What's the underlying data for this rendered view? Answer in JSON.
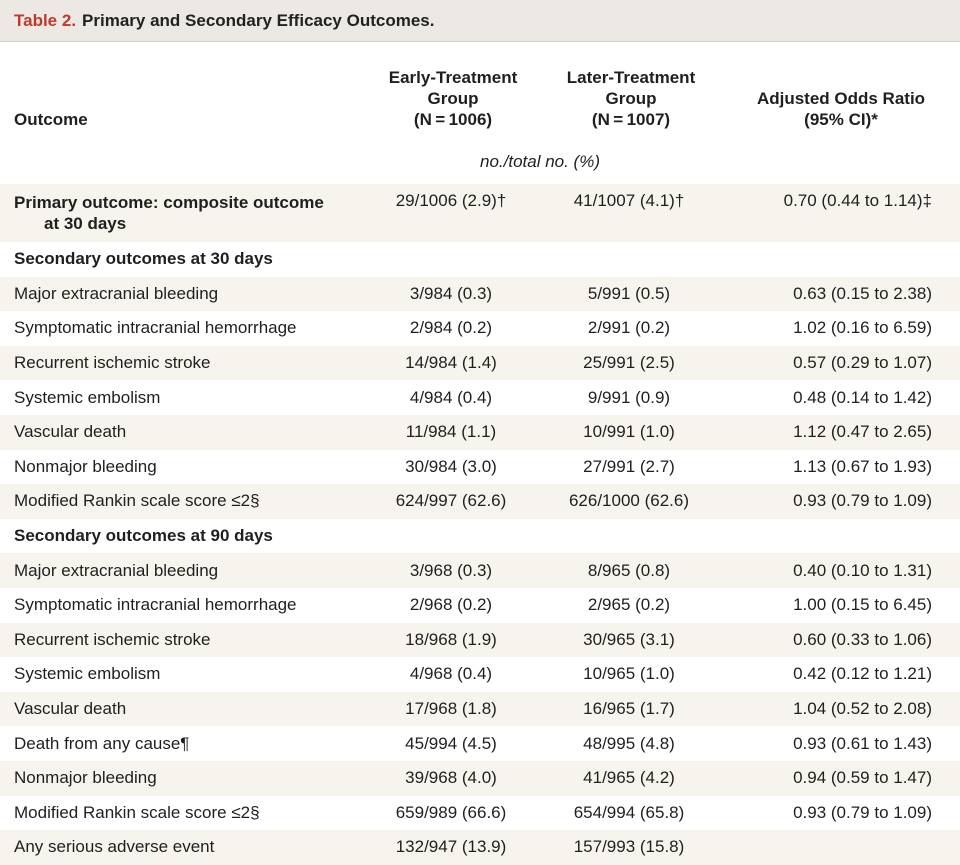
{
  "title": {
    "label": "Table 2.",
    "text": "Primary and Secondary Efficacy Outcomes."
  },
  "header": {
    "outcome": "Outcome",
    "early_l1": "Early-Treatment",
    "early_l2": "Group",
    "early_l3": "(N = 1006)",
    "later_l1": "Later-Treatment",
    "later_l2": "Group",
    "later_l3": "(N = 1007)",
    "or_l1": "Adjusted Odds Ratio",
    "or_l2": "(95% CI)*"
  },
  "units": "no./total no. (%)",
  "primary": {
    "label_l1": "Primary outcome: composite outcome",
    "label_l2": "at 30 days",
    "early": "29/1006 (2.9)†",
    "later": "41/1007 (4.1)†",
    "or": "0.70 (0.44 to 1.14)‡"
  },
  "section30": "Secondary outcomes at 30 days",
  "rows30": [
    {
      "label": "Major extracranial bleeding",
      "early": "3/984 (0.3)",
      "later": "5/991 (0.5)",
      "or": "0.63 (0.15 to 2.38)"
    },
    {
      "label": "Symptomatic intracranial hemorrhage",
      "early": "2/984 (0.2)",
      "later": "2/991 (0.2)",
      "or": "1.02 (0.16 to 6.59)"
    },
    {
      "label": "Recurrent ischemic stroke",
      "early": "14/984 (1.4)",
      "later": "25/991 (2.5)",
      "or": "0.57 (0.29 to 1.07)"
    },
    {
      "label": "Systemic embolism",
      "early": "4/984 (0.4)",
      "later": "9/991 (0.9)",
      "or": "0.48 (0.14 to 1.42)"
    },
    {
      "label": "Vascular death",
      "early": "11/984 (1.1)",
      "later": "10/991 (1.0)",
      "or": "1.12 (0.47 to 2.65)"
    },
    {
      "label": "Nonmajor bleeding",
      "early": "30/984 (3.0)",
      "later": "27/991 (2.7)",
      "or": "1.13 (0.67 to 1.93)"
    },
    {
      "label": "Modified Rankin scale score ≤2§",
      "early": "624/997 (62.6)",
      "later": "626/1000 (62.6)",
      "or": "0.93 (0.79 to 1.09)"
    }
  ],
  "section90": "Secondary outcomes at 90 days",
  "rows90": [
    {
      "label": "Major extracranial bleeding",
      "early": "3/968 (0.3)",
      "later": "8/965 (0.8)",
      "or": "0.40 (0.10 to 1.31)"
    },
    {
      "label": "Symptomatic intracranial hemorrhage",
      "early": "2/968 (0.2)",
      "later": "2/965 (0.2)",
      "or": "1.00 (0.15 to 6.45)"
    },
    {
      "label": "Recurrent ischemic stroke",
      "early": "18/968 (1.9)",
      "later": "30/965 (3.1)",
      "or": "0.60 (0.33 to 1.06)"
    },
    {
      "label": "Systemic embolism",
      "early": "4/968 (0.4)",
      "later": "10/965 (1.0)",
      "or": "0.42 (0.12 to 1.21)"
    },
    {
      "label": "Vascular death",
      "early": "17/968 (1.8)",
      "later": "16/965 (1.7)",
      "or": "1.04 (0.52 to 2.08)"
    },
    {
      "label": "Death from any cause¶",
      "early": "45/994 (4.5)",
      "later": "48/995 (4.8)",
      "or": "0.93 (0.61 to 1.43)"
    },
    {
      "label": "Nonmajor bleeding",
      "early": "39/968 (4.0)",
      "later": "41/965 (4.2)",
      "or": "0.94 (0.59 to 1.47)"
    },
    {
      "label": "Modified Rankin scale score ≤2§",
      "early": "659/989 (66.6)",
      "later": "654/994 (65.8)",
      "or": "0.93 (0.79 to 1.09)"
    },
    {
      "label": "Any serious adverse event",
      "early": "132/947 (13.9)",
      "later": "157/993 (15.8)",
      "or": ""
    }
  ]
}
